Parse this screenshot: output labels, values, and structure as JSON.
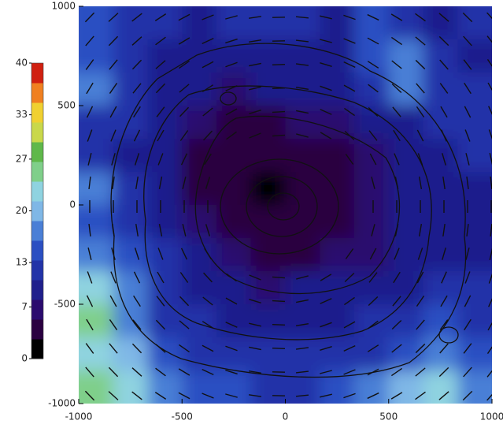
{
  "chart_data": {
    "type": "heatmap",
    "xlim": [
      -1000,
      1000
    ],
    "ylim": [
      -1000,
      1000
    ],
    "xticks": [
      -1000,
      -500,
      0,
      500,
      1000
    ],
    "yticks": [
      -1000,
      -500,
      0,
      500,
      1000
    ],
    "zlim": [
      0,
      40
    ],
    "cbticks": [
      0,
      7,
      13,
      20,
      27,
      33,
      40
    ],
    "colorscale": [
      "#000000",
      "#2a0040",
      "#2b0a6e",
      "#1f1f8c",
      "#2233a8",
      "#2b4fc2",
      "#4a7fd6",
      "#7fb7e6",
      "#8fd3e0",
      "#7fcf8a",
      "#5fb84a",
      "#c9d84a",
      "#f0d030",
      "#f08020",
      "#d02010"
    ],
    "z": [
      [
        15,
        13,
        12,
        10,
        11,
        13,
        12,
        10,
        14,
        12,
        10,
        11
      ],
      [
        14,
        11,
        10,
        9,
        8,
        9,
        10,
        10,
        14,
        18,
        12,
        10
      ],
      [
        16,
        12,
        9,
        8,
        7,
        8,
        9,
        10,
        11,
        16,
        12,
        11
      ],
      [
        13,
        11,
        8,
        6,
        5,
        5,
        6,
        7,
        8,
        10,
        11,
        12
      ],
      [
        11,
        10,
        8,
        5,
        3,
        3,
        4,
        5,
        7,
        9,
        10,
        11
      ],
      [
        17,
        13,
        9,
        5,
        3,
        2,
        3,
        4,
        6,
        8,
        9,
        9
      ],
      [
        15,
        12,
        9,
        6,
        4,
        3,
        4,
        5,
        6,
        8,
        9,
        10
      ],
      [
        18,
        14,
        11,
        8,
        6,
        5,
        5,
        6,
        7,
        9,
        10,
        10
      ],
      [
        22,
        16,
        12,
        9,
        8,
        7,
        8,
        8,
        9,
        10,
        12,
        11
      ],
      [
        24,
        17,
        13,
        11,
        10,
        9,
        10,
        10,
        11,
        13,
        14,
        12
      ],
      [
        23,
        20,
        15,
        12,
        12,
        11,
        11,
        12,
        13,
        15,
        18,
        14
      ],
      [
        25,
        22,
        18,
        15,
        14,
        13,
        13,
        14,
        17,
        20,
        22,
        18
      ]
    ]
  }
}
